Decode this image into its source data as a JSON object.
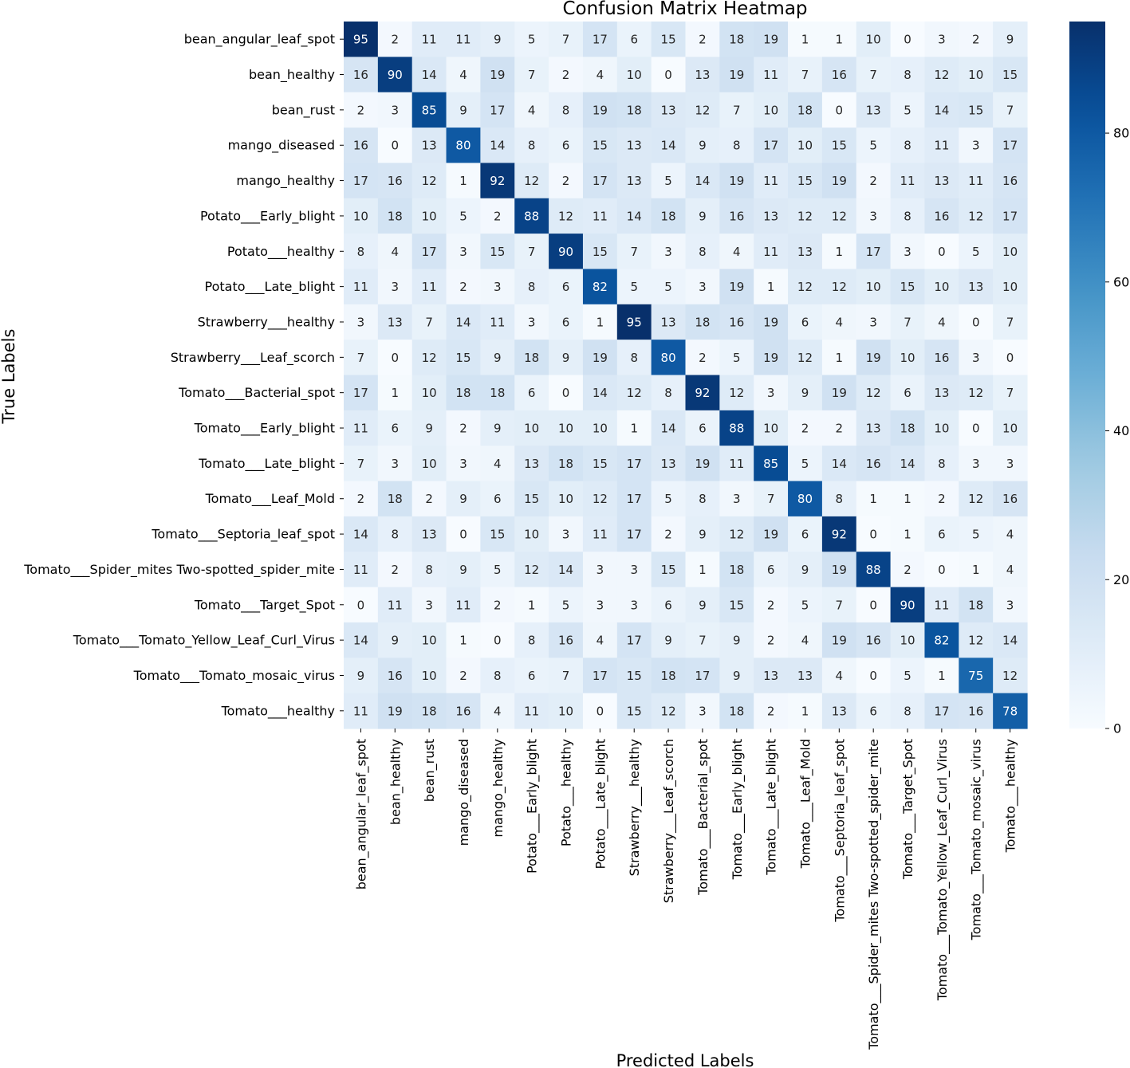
{
  "chart_data": {
    "type": "heatmap",
    "title": "Confusion Matrix Heatmap",
    "xlabel": "Predicted Labels",
    "ylabel": "True Labels",
    "labels": [
      "bean_angular_leaf_spot",
      "bean_healthy",
      "bean_rust",
      "mango_diseased",
      "mango_healthy",
      "Potato___Early_blight",
      "Potato___healthy",
      "Potato___Late_blight",
      "Strawberry___healthy",
      "Strawberry___Leaf_scorch",
      "Tomato___Bacterial_spot",
      "Tomato___Early_blight",
      "Tomato___Late_blight",
      "Tomato___Leaf_Mold",
      "Tomato___Septoria_leaf_spot",
      "Tomato___Spider_mites Two-spotted_spider_mite",
      "Tomato___Target_Spot",
      "Tomato___Tomato_Yellow_Leaf_Curl_Virus",
      "Tomato___Tomato_mosaic_virus",
      "Tomato___healthy"
    ],
    "matrix": [
      [
        95,
        2,
        11,
        11,
        9,
        5,
        7,
        17,
        6,
        15,
        2,
        18,
        19,
        1,
        1,
        10,
        0,
        3,
        2,
        9
      ],
      [
        16,
        90,
        14,
        4,
        19,
        7,
        2,
        4,
        10,
        0,
        13,
        19,
        11,
        7,
        16,
        7,
        8,
        12,
        10,
        15
      ],
      [
        2,
        3,
        85,
        9,
        17,
        4,
        8,
        19,
        18,
        13,
        12,
        7,
        10,
        18,
        0,
        13,
        5,
        14,
        15,
        7
      ],
      [
        16,
        0,
        13,
        80,
        14,
        8,
        6,
        15,
        13,
        14,
        9,
        8,
        17,
        10,
        15,
        5,
        8,
        11,
        3,
        17
      ],
      [
        17,
        16,
        12,
        1,
        92,
        12,
        2,
        17,
        13,
        5,
        14,
        19,
        11,
        15,
        19,
        2,
        11,
        13,
        11,
        16
      ],
      [
        10,
        18,
        10,
        5,
        2,
        88,
        12,
        11,
        14,
        18,
        9,
        16,
        13,
        12,
        12,
        3,
        8,
        16,
        12,
        17
      ],
      [
        8,
        4,
        17,
        3,
        15,
        7,
        90,
        15,
        7,
        3,
        8,
        4,
        11,
        13,
        1,
        17,
        3,
        0,
        5,
        10
      ],
      [
        11,
        3,
        11,
        2,
        3,
        8,
        6,
        82,
        5,
        5,
        3,
        19,
        1,
        12,
        12,
        10,
        15,
        10,
        13,
        10
      ],
      [
        3,
        13,
        7,
        14,
        11,
        3,
        6,
        1,
        95,
        13,
        18,
        16,
        19,
        6,
        4,
        3,
        7,
        4,
        0,
        7
      ],
      [
        7,
        0,
        12,
        15,
        9,
        18,
        9,
        19,
        8,
        80,
        2,
        5,
        19,
        12,
        1,
        19,
        10,
        16,
        3,
        0
      ],
      [
        17,
        1,
        10,
        18,
        18,
        6,
        0,
        14,
        12,
        8,
        92,
        12,
        3,
        9,
        19,
        12,
        6,
        13,
        12,
        7
      ],
      [
        11,
        6,
        9,
        2,
        9,
        10,
        10,
        10,
        1,
        14,
        6,
        88,
        10,
        2,
        2,
        13,
        18,
        10,
        0,
        10
      ],
      [
        7,
        3,
        10,
        3,
        4,
        13,
        18,
        15,
        17,
        13,
        19,
        11,
        85,
        5,
        14,
        16,
        14,
        8,
        3,
        3
      ],
      [
        2,
        18,
        2,
        9,
        6,
        15,
        10,
        12,
        17,
        5,
        8,
        3,
        7,
        80,
        8,
        1,
        1,
        2,
        12,
        16
      ],
      [
        14,
        8,
        13,
        0,
        15,
        10,
        3,
        11,
        17,
        2,
        9,
        12,
        19,
        6,
        92,
        0,
        1,
        6,
        5,
        4
      ],
      [
        11,
        2,
        8,
        9,
        5,
        12,
        14,
        3,
        3,
        15,
        1,
        18,
        6,
        9,
        19,
        88,
        2,
        0,
        1,
        4
      ],
      [
        0,
        11,
        3,
        11,
        2,
        1,
        5,
        3,
        3,
        6,
        9,
        15,
        2,
        5,
        7,
        0,
        90,
        11,
        18,
        3
      ],
      [
        14,
        9,
        10,
        1,
        0,
        8,
        16,
        4,
        17,
        9,
        7,
        9,
        2,
        4,
        19,
        16,
        10,
        82,
        12,
        14
      ],
      [
        9,
        16,
        10,
        2,
        8,
        6,
        7,
        17,
        15,
        18,
        17,
        9,
        13,
        13,
        4,
        0,
        5,
        1,
        75,
        12
      ],
      [
        11,
        19,
        18,
        16,
        4,
        11,
        10,
        0,
        15,
        12,
        3,
        18,
        2,
        1,
        13,
        6,
        8,
        17,
        16,
        78
      ]
    ],
    "vmin": 0,
    "vmax": 95,
    "colormap": "Blues",
    "colorbar_ticks": [
      0,
      20,
      40,
      60,
      80
    ]
  }
}
